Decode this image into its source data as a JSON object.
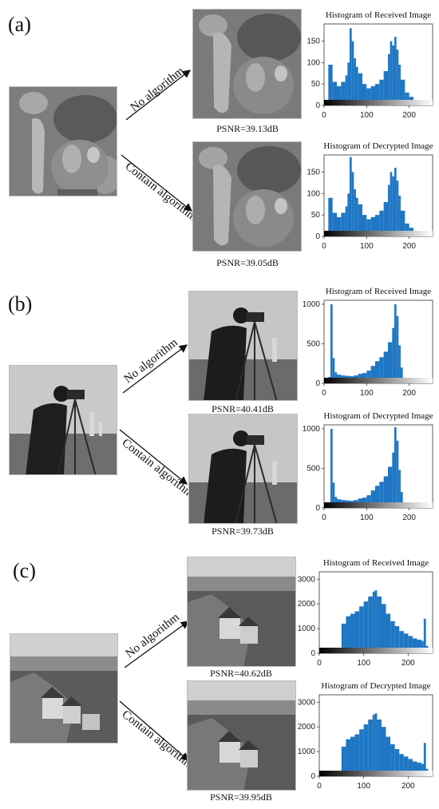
{
  "colors": {
    "bar": "#1f77c4",
    "axis": "#333333"
  },
  "panels": [
    {
      "label": "(a)",
      "subject": "peppers",
      "arrow_top": "No algorithm",
      "arrow_bottom": "Contain algorithm",
      "psnr_top": "PSNR=39.13dB",
      "psnr_bottom": "PSNR=39.05dB"
    },
    {
      "label": "(b)",
      "subject": "cameraman",
      "arrow_top": "No algorithm",
      "arrow_bottom": "Contain algorithm",
      "psnr_top": "PSNR=40.41dB",
      "psnr_bottom": "PSNR=39.73dB"
    },
    {
      "label": "(c)",
      "subject": "village",
      "arrow_top": "No algorithm",
      "arrow_bottom": "Contain algorithm",
      "psnr_top": "PSNR=40.62dB",
      "psnr_bottom": "PSNR=39.95dB"
    }
  ],
  "chart_data": [
    {
      "type": "bar",
      "title": "Histogram of Received Image",
      "xlabel": "",
      "ylabel": "",
      "xlim": [
        0,
        255
      ],
      "ylim": [
        0,
        190
      ],
      "xticks": [
        0,
        100,
        200
      ],
      "yticks": [
        0,
        50,
        100,
        150
      ],
      "x": [
        0,
        10,
        20,
        30,
        40,
        50,
        55,
        60,
        65,
        70,
        75,
        80,
        90,
        100,
        110,
        120,
        130,
        140,
        150,
        155,
        160,
        165,
        170,
        175,
        180,
        190,
        200,
        210,
        220,
        230,
        240,
        255
      ],
      "values": [
        0,
        95,
        55,
        45,
        55,
        70,
        100,
        180,
        150,
        110,
        90,
        75,
        50,
        40,
        45,
        50,
        60,
        80,
        120,
        150,
        140,
        160,
        130,
        95,
        60,
        30,
        20,
        12,
        8,
        5,
        0,
        0
      ]
    },
    {
      "type": "bar",
      "title": "Histogram of Decrypted Image",
      "xlabel": "",
      "ylabel": "",
      "xlim": [
        0,
        255
      ],
      "ylim": [
        0,
        190
      ],
      "xticks": [
        0,
        100,
        200
      ],
      "yticks": [
        0,
        50,
        100,
        150
      ],
      "x": [
        0,
        10,
        20,
        30,
        40,
        50,
        55,
        60,
        65,
        70,
        75,
        80,
        90,
        100,
        110,
        120,
        130,
        140,
        150,
        155,
        160,
        165,
        170,
        175,
        180,
        190,
        200,
        210,
        220,
        230,
        240,
        255
      ],
      "values": [
        0,
        90,
        55,
        45,
        55,
        70,
        100,
        185,
        150,
        110,
        90,
        75,
        50,
        40,
        45,
        50,
        60,
        80,
        120,
        150,
        140,
        160,
        130,
        95,
        60,
        30,
        20,
        12,
        8,
        5,
        0,
        0
      ]
    },
    {
      "type": "bar",
      "title": "Histogram of Received Image",
      "xlabel": "",
      "ylabel": "",
      "xlim": [
        0,
        255
      ],
      "ylim": [
        0,
        1050
      ],
      "xticks": [
        0,
        100,
        200
      ],
      "yticks": [
        0,
        500,
        1000
      ],
      "x": [
        0,
        5,
        10,
        15,
        20,
        25,
        30,
        40,
        50,
        60,
        70,
        80,
        90,
        100,
        110,
        120,
        130,
        140,
        150,
        160,
        165,
        170,
        175,
        180,
        185,
        190,
        200,
        210,
        220,
        240,
        255
      ],
      "values": [
        0,
        0,
        80,
        1000,
        320,
        140,
        110,
        100,
        95,
        90,
        100,
        120,
        130,
        160,
        220,
        280,
        330,
        400,
        520,
        700,
        1000,
        850,
        480,
        200,
        50,
        10,
        5,
        5,
        5,
        5,
        0
      ]
    },
    {
      "type": "bar",
      "title": "Histogram of Decrypted Image",
      "xlabel": "",
      "ylabel": "",
      "xlim": [
        0,
        255
      ],
      "ylim": [
        0,
        1050
      ],
      "xticks": [
        0,
        100,
        200
      ],
      "yticks": [
        0,
        500,
        1000
      ],
      "x": [
        0,
        5,
        10,
        15,
        20,
        25,
        30,
        40,
        50,
        60,
        70,
        80,
        90,
        100,
        110,
        120,
        130,
        140,
        150,
        160,
        165,
        170,
        175,
        180,
        185,
        190,
        200,
        210,
        220,
        240,
        255
      ],
      "values": [
        0,
        0,
        60,
        1000,
        320,
        140,
        110,
        100,
        95,
        90,
        100,
        120,
        130,
        160,
        220,
        280,
        330,
        400,
        520,
        700,
        1020,
        850,
        480,
        200,
        50,
        10,
        5,
        5,
        5,
        5,
        0
      ]
    },
    {
      "type": "bar",
      "title": "Histogram of Received Image",
      "xlabel": "",
      "ylabel": "",
      "xlim": [
        0,
        255
      ],
      "ylim": [
        0,
        3300
      ],
      "xticks": [
        0,
        100,
        200
      ],
      "yticks": [
        0,
        1000,
        2000,
        3000
      ],
      "x": [
        0,
        10,
        20,
        30,
        40,
        50,
        60,
        70,
        80,
        90,
        100,
        110,
        120,
        125,
        130,
        140,
        150,
        160,
        170,
        180,
        190,
        200,
        210,
        220,
        230,
        235,
        240,
        245,
        255
      ],
      "values": [
        0,
        0,
        0,
        0,
        200,
        1200,
        1500,
        1600,
        1700,
        1900,
        2100,
        2300,
        2500,
        2550,
        2300,
        2000,
        1600,
        1300,
        1100,
        900,
        800,
        700,
        600,
        550,
        500,
        1400,
        300,
        0,
        0
      ]
    },
    {
      "type": "bar",
      "title": "Histogram of Decrypted Image",
      "xlabel": "",
      "ylabel": "",
      "xlim": [
        0,
        255
      ],
      "ylim": [
        0,
        3300
      ],
      "xticks": [
        0,
        100,
        200
      ],
      "yticks": [
        0,
        1000,
        2000,
        3000
      ],
      "x": [
        0,
        10,
        20,
        30,
        40,
        50,
        60,
        70,
        80,
        90,
        100,
        110,
        120,
        125,
        130,
        140,
        150,
        160,
        170,
        180,
        190,
        200,
        210,
        220,
        230,
        235,
        240,
        245,
        255
      ],
      "values": [
        0,
        0,
        0,
        0,
        200,
        1200,
        1500,
        1600,
        1700,
        1900,
        2100,
        2300,
        2500,
        2550,
        2300,
        2000,
        1600,
        1300,
        1100,
        900,
        800,
        700,
        600,
        550,
        500,
        1350,
        300,
        0,
        0
      ]
    }
  ]
}
